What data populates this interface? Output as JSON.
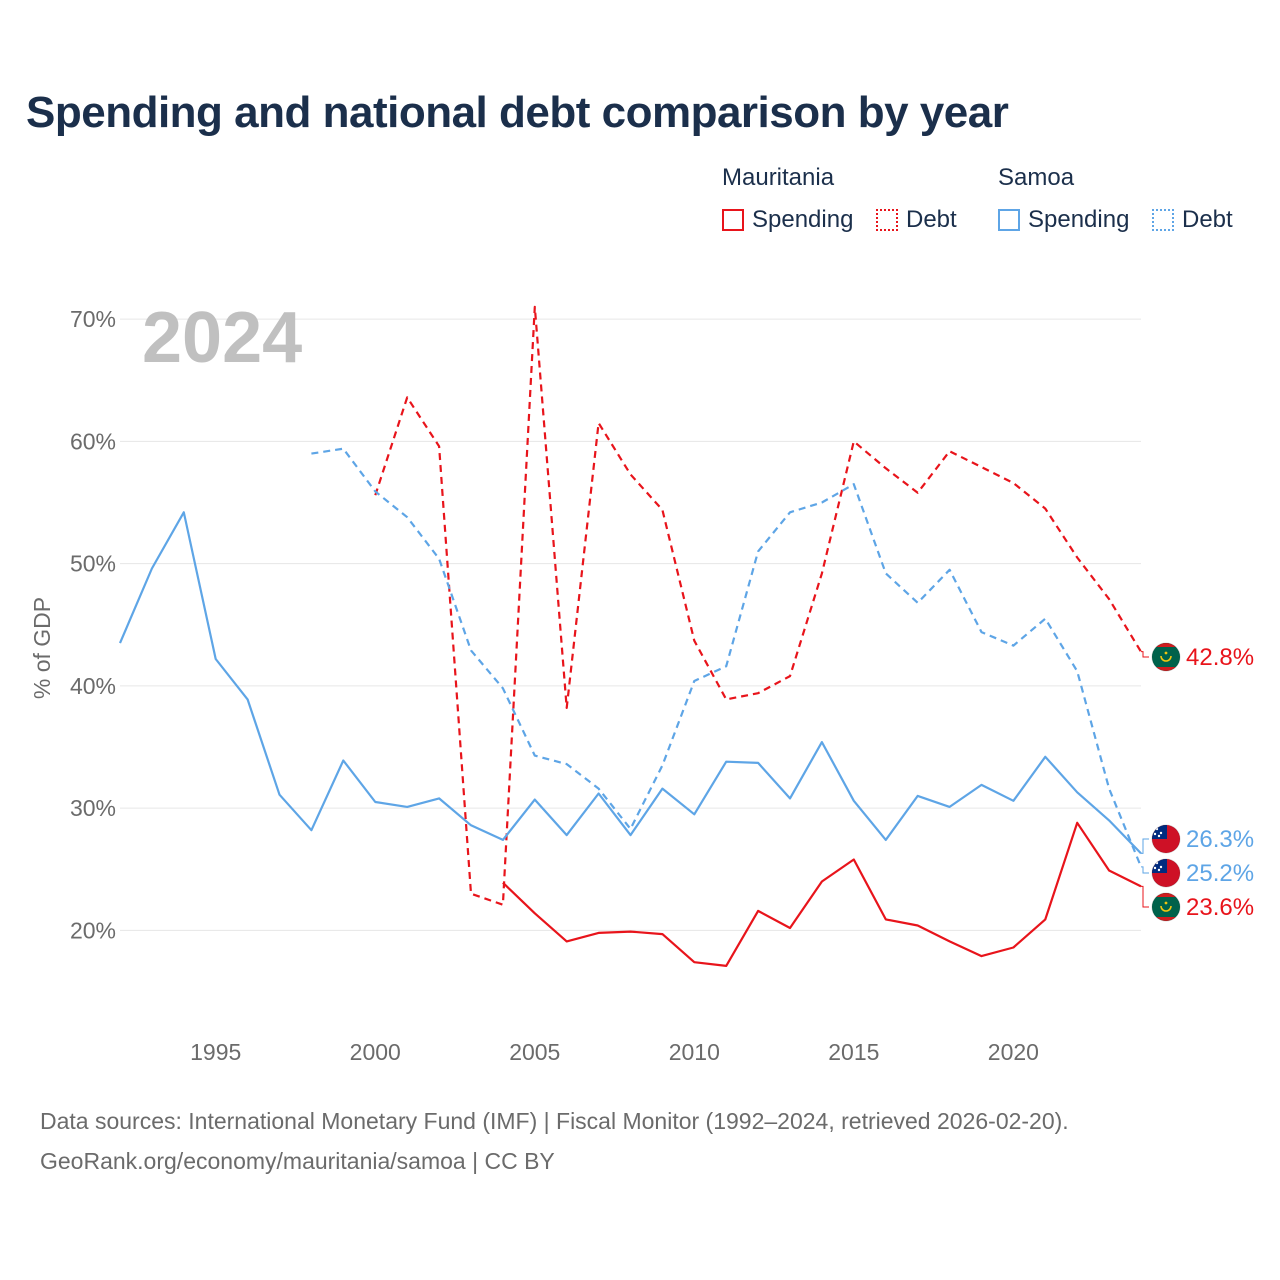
{
  "title": "Spending and national debt comparison by year",
  "legend": {
    "groups": [
      {
        "name": "Mauritania",
        "items": [
          {
            "label": "Spending",
            "style": "solid",
            "color": "#e8141b"
          },
          {
            "label": "Debt",
            "style": "dotted",
            "color": "#e8141b"
          }
        ]
      },
      {
        "name": "Samoa",
        "items": [
          {
            "label": "Spending",
            "style": "solid",
            "color": "#5ea5e6"
          },
          {
            "label": "Debt",
            "style": "dotted",
            "color": "#5ea5e6"
          }
        ]
      }
    ]
  },
  "year_label": "2024",
  "footer": {
    "line1": "Data sources: International Monetary Fund (IMF) | Fiscal Monitor (1992–2024, retrieved 2026-02-20).",
    "line2": "GeoRank.org/economy/mauritania/samoa | CC BY"
  },
  "colors": {
    "mauritania": "#e8141b",
    "samoa": "#5ea5e6",
    "axis_text": "#6b6b6b",
    "grid": "#e6e6e6",
    "title": "#1b2f4b",
    "year": "#c0c0c0"
  },
  "chart_data": {
    "type": "line",
    "title": "Spending and national debt comparison by year",
    "xlabel": "",
    "ylabel": "% of GDP",
    "xlim": [
      1992,
      2024
    ],
    "ylim": [
      13,
      75
    ],
    "x_ticks": [
      1995,
      2000,
      2005,
      2010,
      2015,
      2020
    ],
    "y_ticks": [
      20,
      30,
      40,
      50,
      60,
      70
    ],
    "y_tick_labels": [
      "20%",
      "30%",
      "40%",
      "50%",
      "60%",
      "70%"
    ],
    "grid": true,
    "series": [
      {
        "name": "Mauritania Spending",
        "country": "Mauritania",
        "kind": "Spending",
        "dash": "solid",
        "color": "#e8141b",
        "x": [
          2004,
          2005,
          2006,
          2007,
          2008,
          2009,
          2010,
          2011,
          2012,
          2013,
          2014,
          2015,
          2016,
          2017,
          2018,
          2019,
          2020,
          2021,
          2022,
          2023,
          2024
        ],
        "values": [
          23.9,
          21.4,
          19.1,
          19.8,
          19.9,
          19.7,
          17.4,
          17.1,
          21.6,
          20.2,
          24.0,
          25.8,
          20.9,
          20.4,
          19.1,
          17.9,
          18.6,
          20.9,
          28.8,
          24.9,
          23.6
        ],
        "end_label": "23.6%"
      },
      {
        "name": "Mauritania Debt",
        "country": "Mauritania",
        "kind": "Debt",
        "dash": "dashed",
        "color": "#e8141b",
        "x": [
          2000,
          2001,
          2002,
          2003,
          2004,
          2005,
          2006,
          2007,
          2008,
          2009,
          2010,
          2011,
          2012,
          2013,
          2014,
          2015,
          2016,
          2017,
          2018,
          2019,
          2020,
          2021,
          2022,
          2023,
          2024
        ],
        "values": [
          55.6,
          63.6,
          59.6,
          23.0,
          22.1,
          71.0,
          38.2,
          61.5,
          57.3,
          54.4,
          43.7,
          38.9,
          39.4,
          40.8,
          49.2,
          60.0,
          57.8,
          55.8,
          59.2,
          57.9,
          56.6,
          54.5,
          50.5,
          47.1,
          42.8
        ],
        "end_label": "42.8%"
      },
      {
        "name": "Samoa Spending",
        "country": "Samoa",
        "kind": "Spending",
        "dash": "solid",
        "color": "#5ea5e6",
        "x": [
          1992,
          1993,
          1994,
          1995,
          1996,
          1997,
          1998,
          1999,
          2000,
          2001,
          2002,
          2003,
          2004,
          2005,
          2006,
          2007,
          2008,
          2009,
          2010,
          2011,
          2012,
          2013,
          2014,
          2015,
          2016,
          2017,
          2018,
          2019,
          2020,
          2021,
          2022,
          2023,
          2024
        ],
        "values": [
          43.5,
          49.6,
          54.2,
          42.2,
          38.9,
          31.1,
          28.2,
          33.9,
          30.5,
          30.1,
          30.8,
          28.6,
          27.4,
          30.7,
          27.8,
          31.2,
          27.8,
          31.6,
          29.5,
          33.8,
          33.7,
          30.8,
          35.4,
          30.6,
          27.4,
          31.0,
          30.1,
          31.9,
          30.6,
          34.2,
          31.3,
          29.0,
          26.3
        ],
        "end_label": "26.3%"
      },
      {
        "name": "Samoa Debt",
        "country": "Samoa",
        "kind": "Debt",
        "dash": "dashed",
        "color": "#5ea5e6",
        "x": [
          1998,
          1999,
          2000,
          2001,
          2002,
          2003,
          2004,
          2005,
          2006,
          2007,
          2008,
          2009,
          2010,
          2011,
          2012,
          2013,
          2014,
          2015,
          2016,
          2017,
          2018,
          2019,
          2020,
          2021,
          2022,
          2023,
          2024
        ],
        "values": [
          59.0,
          59.4,
          55.9,
          53.8,
          50.4,
          42.9,
          39.8,
          34.3,
          33.6,
          31.6,
          28.3,
          33.5,
          40.4,
          41.6,
          51.0,
          54.2,
          55.0,
          56.5,
          49.2,
          46.8,
          49.5,
          44.4,
          43.3,
          45.5,
          41.2,
          31.6,
          25.2
        ],
        "end_label": "25.2%"
      }
    ]
  }
}
